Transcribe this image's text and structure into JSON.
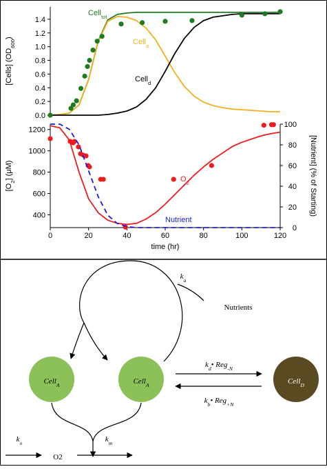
{
  "chart_data": [
    {
      "type": "line",
      "ylabel": [
        "[Cells] (OD",
        "600",
        ")"
      ],
      "xlim": [
        0,
        120
      ],
      "ylim": [
        0,
        1.58
      ],
      "yticks": [
        {
          "value": 0,
          "label": "0.0"
        },
        0.2,
        0.4,
        0.6,
        0.8,
        {
          "value": 1,
          "label": "1.0"
        },
        1.2,
        1.4
      ],
      "series": [
        {
          "name": [
            "Cell",
            "tot"
          ],
          "color": "#1e7b1e",
          "marker": false,
          "x": [
            0,
            5,
            10,
            15,
            20,
            25,
            30,
            35,
            40,
            45,
            50,
            55,
            60,
            65,
            70,
            75,
            80,
            85,
            90,
            95,
            100,
            105,
            110,
            115,
            120
          ],
          "values": [
            0,
            0.01,
            0.03,
            0.15,
            0.52,
            1.08,
            1.39,
            1.47,
            1.49,
            1.5,
            1.5,
            1.5,
            1.5,
            1.5,
            1.5,
            1.5,
            1.5,
            1.5,
            1.5,
            1.5,
            1.5,
            1.5,
            1.5,
            1.5,
            1.5
          ]
        },
        {
          "name": [
            "Cell",
            "a"
          ],
          "color": "#f2b01e",
          "marker": false,
          "x": [
            0,
            5,
            10,
            15,
            20,
            25,
            30,
            35,
            40,
            45,
            50,
            55,
            60,
            65,
            70,
            75,
            80,
            85,
            90,
            95,
            100,
            105,
            110,
            115,
            120
          ],
          "values": [
            0,
            0.01,
            0.03,
            0.15,
            0.52,
            1.07,
            1.37,
            1.44,
            1.43,
            1.38,
            1.27,
            1.1,
            0.86,
            0.62,
            0.42,
            0.28,
            0.19,
            0.14,
            0.11,
            0.09,
            0.08,
            0.07,
            0.06,
            0.05,
            0.05
          ]
        },
        {
          "name": [
            "Cell",
            "d"
          ],
          "color": "#000000",
          "marker": false,
          "x": [
            0,
            5,
            10,
            15,
            20,
            25,
            30,
            35,
            40,
            45,
            50,
            55,
            60,
            65,
            70,
            75,
            80,
            85,
            90,
            95,
            100,
            105,
            110,
            115,
            120
          ],
          "values": [
            0,
            0,
            0,
            0,
            0,
            0,
            0.01,
            0.03,
            0.06,
            0.12,
            0.23,
            0.4,
            0.64,
            0.9,
            1.12,
            1.28,
            1.38,
            1.43,
            1.45,
            1.47,
            1.48,
            1.48,
            1.48,
            1.48,
            1.48
          ]
        },
        {
          "color": "#1e7b1e",
          "marker": true,
          "x": [
            0,
            10.8,
            12,
            13.7,
            16,
            18,
            19.4,
            20.5,
            22.3,
            24.5,
            27,
            37,
            48,
            60,
            74,
            100,
            112,
            120
          ],
          "values": [
            0,
            0.1,
            0.15,
            0.21,
            0.39,
            0.57,
            0.71,
            0.8,
            0.95,
            1.08,
            1.15,
            1.33,
            1.35,
            1.37,
            1.38,
            1.46,
            1.48,
            1.51
          ]
        }
      ]
    },
    {
      "type": "line",
      "ylabel": [
        "[O",
        "2",
        "] (μM)"
      ],
      "y2label": "[Nutrient] (% of  Starting)",
      "xlabel": "time (hr)",
      "xlim": [
        0,
        120
      ],
      "xticks": [
        0,
        20,
        40,
        60,
        80,
        100,
        120
      ],
      "ylim": [
        280,
        1250
      ],
      "yticks": [
        400,
        600,
        800,
        1000,
        1200
      ],
      "y2lim": [
        0,
        100
      ],
      "y2ticks": [
        0,
        20,
        40,
        60,
        80,
        100
      ],
      "series": [
        {
          "color": "#ee1c1c",
          "marker": false,
          "x": [
            0,
            5,
            10,
            15,
            20,
            25,
            30,
            35,
            40,
            45,
            50,
            55,
            60,
            65,
            70,
            75,
            80,
            85,
            90,
            95,
            100,
            105,
            110,
            115,
            120
          ],
          "values": [
            1235,
            1215,
            1100,
            800,
            550,
            420,
            350,
            320,
            310,
            320,
            360,
            420,
            500,
            590,
            680,
            770,
            850,
            920,
            980,
            1040,
            1080,
            1110,
            1140,
            1160,
            1175
          ]
        },
        {
          "name": [
            "O",
            "2"
          ],
          "color": "#ee1c1c",
          "marker": true,
          "x": [
            0,
            10.4,
            11.9,
            12.6,
            14.7,
            15.8,
            17.3,
            18.7,
            19.8,
            20.5,
            26.3,
            27.7,
            39.2,
            64.4,
            84.2,
            111.5,
            115.5,
            116.5
          ],
          "values": [
            1114,
            1088,
            1075,
            1088,
            1037,
            972,
            959,
            952,
            862,
            849,
            733,
            733,
            285,
            733,
            862,
            1240,
            1245,
            1245
          ]
        },
        {
          "name": [
            "Nutrient"
          ],
          "color": "#1a1aee",
          "marker": false,
          "dash": true,
          "axis": "y2",
          "x": [
            0,
            5,
            10,
            15,
            20,
            25,
            30,
            35,
            40,
            45,
            60,
            80,
            100,
            120
          ],
          "values": [
            100,
            100,
            95,
            80,
            55,
            30,
            12,
            4,
            1,
            0,
            0,
            0,
            0,
            0
          ]
        }
      ]
    }
  ],
  "diagram": {
    "nodes": [
      {
        "label": [
          "Cell",
          "A"
        ],
        "color": "#8cc15a"
      },
      {
        "label": [
          "Cell",
          "A"
        ],
        "color": "#8cc15a"
      },
      {
        "label": [
          "Cell",
          "D"
        ],
        "color": "#5a4a22"
      }
    ],
    "labels": {
      "ka": [
        "k",
        "a"
      ],
      "nutrients": [
        "Nutrients"
      ],
      "kd": [
        "k",
        "d",
        "• Reg",
        "-N"
      ],
      "kb": [
        "k",
        "b",
        "• Reg",
        "+N"
      ],
      "ko": [
        "k",
        "o"
      ],
      "o2": [
        "O2"
      ],
      "km": [
        "k",
        "m"
      ]
    }
  }
}
